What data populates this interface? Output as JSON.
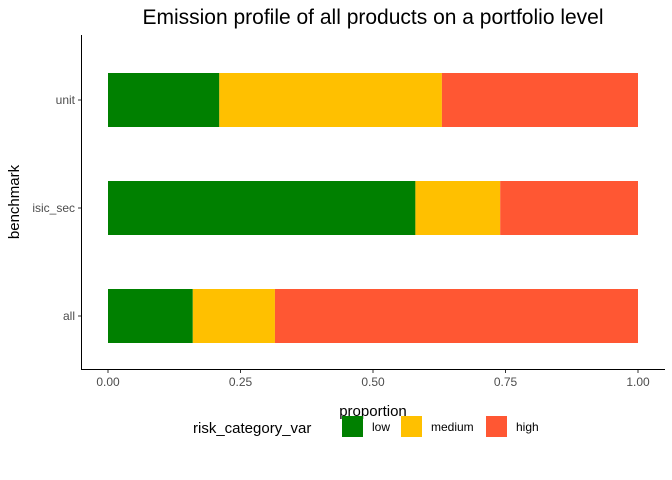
{
  "chart_data": {
    "type": "bar",
    "orientation": "horizontal",
    "stacked": true,
    "title": "Emission profile of all products on a portfolio level",
    "xlabel": "proportion",
    "ylabel": "benchmark",
    "xlim": [
      0,
      1
    ],
    "x_ticks": [
      0,
      0.25,
      0.5,
      0.75,
      1
    ],
    "x_tick_labels": [
      "0.00",
      "0.25",
      "0.50",
      "0.75",
      "1.00"
    ],
    "categories": [
      "unit",
      "isic_sec",
      "all"
    ],
    "series": [
      {
        "name": "low",
        "color": "#008000",
        "values": [
          0.21,
          0.58,
          0.16
        ]
      },
      {
        "name": "medium",
        "color": "#ffc000",
        "values": [
          0.42,
          0.16,
          0.155
        ]
      },
      {
        "name": "high",
        "color": "#ff5733",
        "values": [
          0.37,
          0.26,
          0.685
        ]
      }
    ],
    "legend": {
      "title": "risk_category_var",
      "position": "bottom"
    },
    "grid": false
  }
}
